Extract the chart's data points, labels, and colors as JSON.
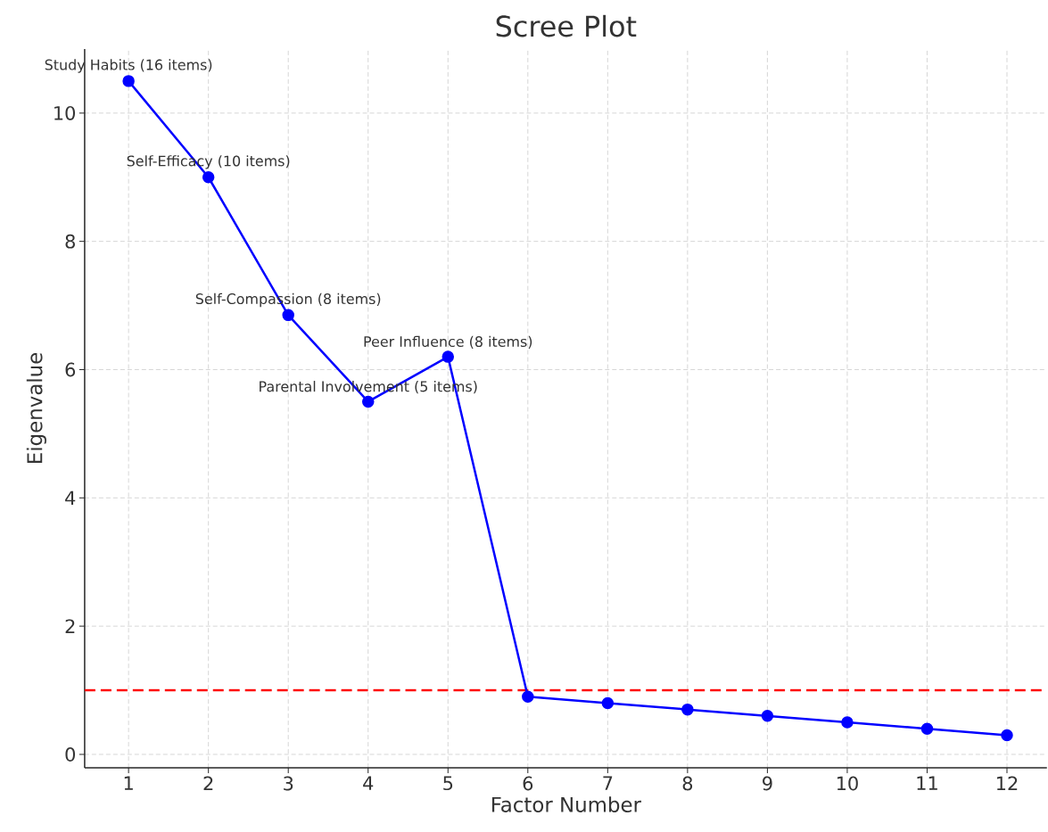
{
  "chart_data": {
    "type": "line",
    "title": "Scree Plot",
    "xlabel": "Factor Number",
    "ylabel": "Eigenvalue",
    "x": [
      1,
      2,
      3,
      4,
      5,
      6,
      7,
      8,
      9,
      10,
      11,
      12
    ],
    "series": [
      {
        "color": "#0000ff",
        "values": [
          10.5,
          9.0,
          6.85,
          5.5,
          6.2,
          0.9,
          0.8,
          0.7,
          0.6,
          0.5,
          0.4,
          0.3
        ]
      }
    ],
    "marker": "circle",
    "line_style": "solid",
    "grid": true,
    "xlim": [
      0.45,
      12.5
    ],
    "ylim": [
      -0.21,
      11.0
    ],
    "xticks": [
      1,
      2,
      3,
      4,
      5,
      6,
      7,
      8,
      9,
      10,
      11,
      12
    ],
    "yticks": [
      0,
      2,
      4,
      6,
      8,
      10
    ],
    "ref_lines": [
      {
        "axis": "y",
        "value": 1,
        "color": "#ff0000",
        "line_style": "dashed"
      }
    ],
    "annotations": [
      {
        "text": "Study Habits (16 items)",
        "x": 1,
        "y": 10.5
      },
      {
        "text": "Self-Efficacy (10 items)",
        "x": 2,
        "y": 9.0
      },
      {
        "text": "Self-Compassion (8 items)",
        "x": 3,
        "y": 6.85
      },
      {
        "text": "Parental Involvement (5 items)",
        "x": 4,
        "y": 5.5
      },
      {
        "text": "Peer Influence (8 items)",
        "x": 5,
        "y": 6.2
      }
    ]
  }
}
